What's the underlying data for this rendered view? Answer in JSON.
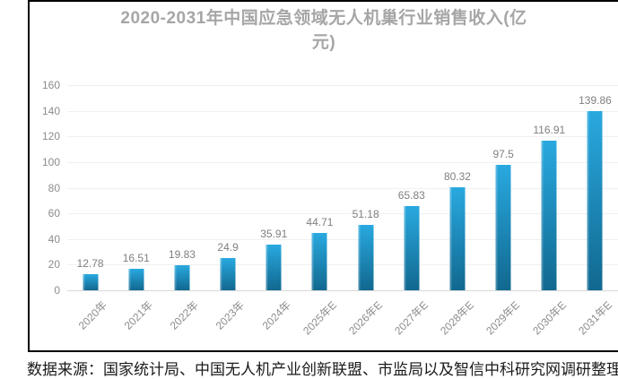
{
  "page": {
    "source_note": "数据来源：国家统计局、中国无人机产业创新联盟、市监局以及智信中科研究网调研整理"
  },
  "chart": {
    "title_lines": [
      "2020-2031年中国应急领域无人机巢行业销售收入(亿",
      "元)"
    ],
    "colors": {
      "title": "#a6a6a6",
      "axis_labels": "#8c8c8c",
      "value_labels": "#7f7f7f",
      "gridline": "#f0f0f0",
      "axis_line": "#d9d9d9",
      "cell_border": "#000000",
      "bar_top": "#29a9e0",
      "bar_bottom": "#11688f"
    }
  },
  "chart_data": {
    "type": "bar",
    "title": "2020-2031年中国应急领域无人机巢行业销售收入(亿元)",
    "xlabel": "",
    "ylabel": "",
    "categories": [
      "2020年",
      "2021年",
      "2022年",
      "2023年",
      "2024年",
      "2025年E",
      "2026年E",
      "2027年E",
      "2028年E",
      "2029年E",
      "2030年E",
      "2031年E"
    ],
    "values": [
      12.78,
      16.51,
      19.83,
      24.9,
      35.91,
      44.71,
      51.18,
      65.83,
      80.32,
      97.5,
      116.91,
      139.86
    ],
    "value_labels": [
      "12.78",
      "16.51",
      "19.83",
      "24.9",
      "35.91",
      "44.71",
      "51.18",
      "65.83",
      "80.32",
      "97.5",
      "116.91",
      "139.86"
    ],
    "ylim": [
      0,
      160
    ],
    "yticks": [
      0,
      20,
      40,
      60,
      80,
      100,
      120,
      140,
      160
    ],
    "grid": true,
    "legend": "none"
  }
}
